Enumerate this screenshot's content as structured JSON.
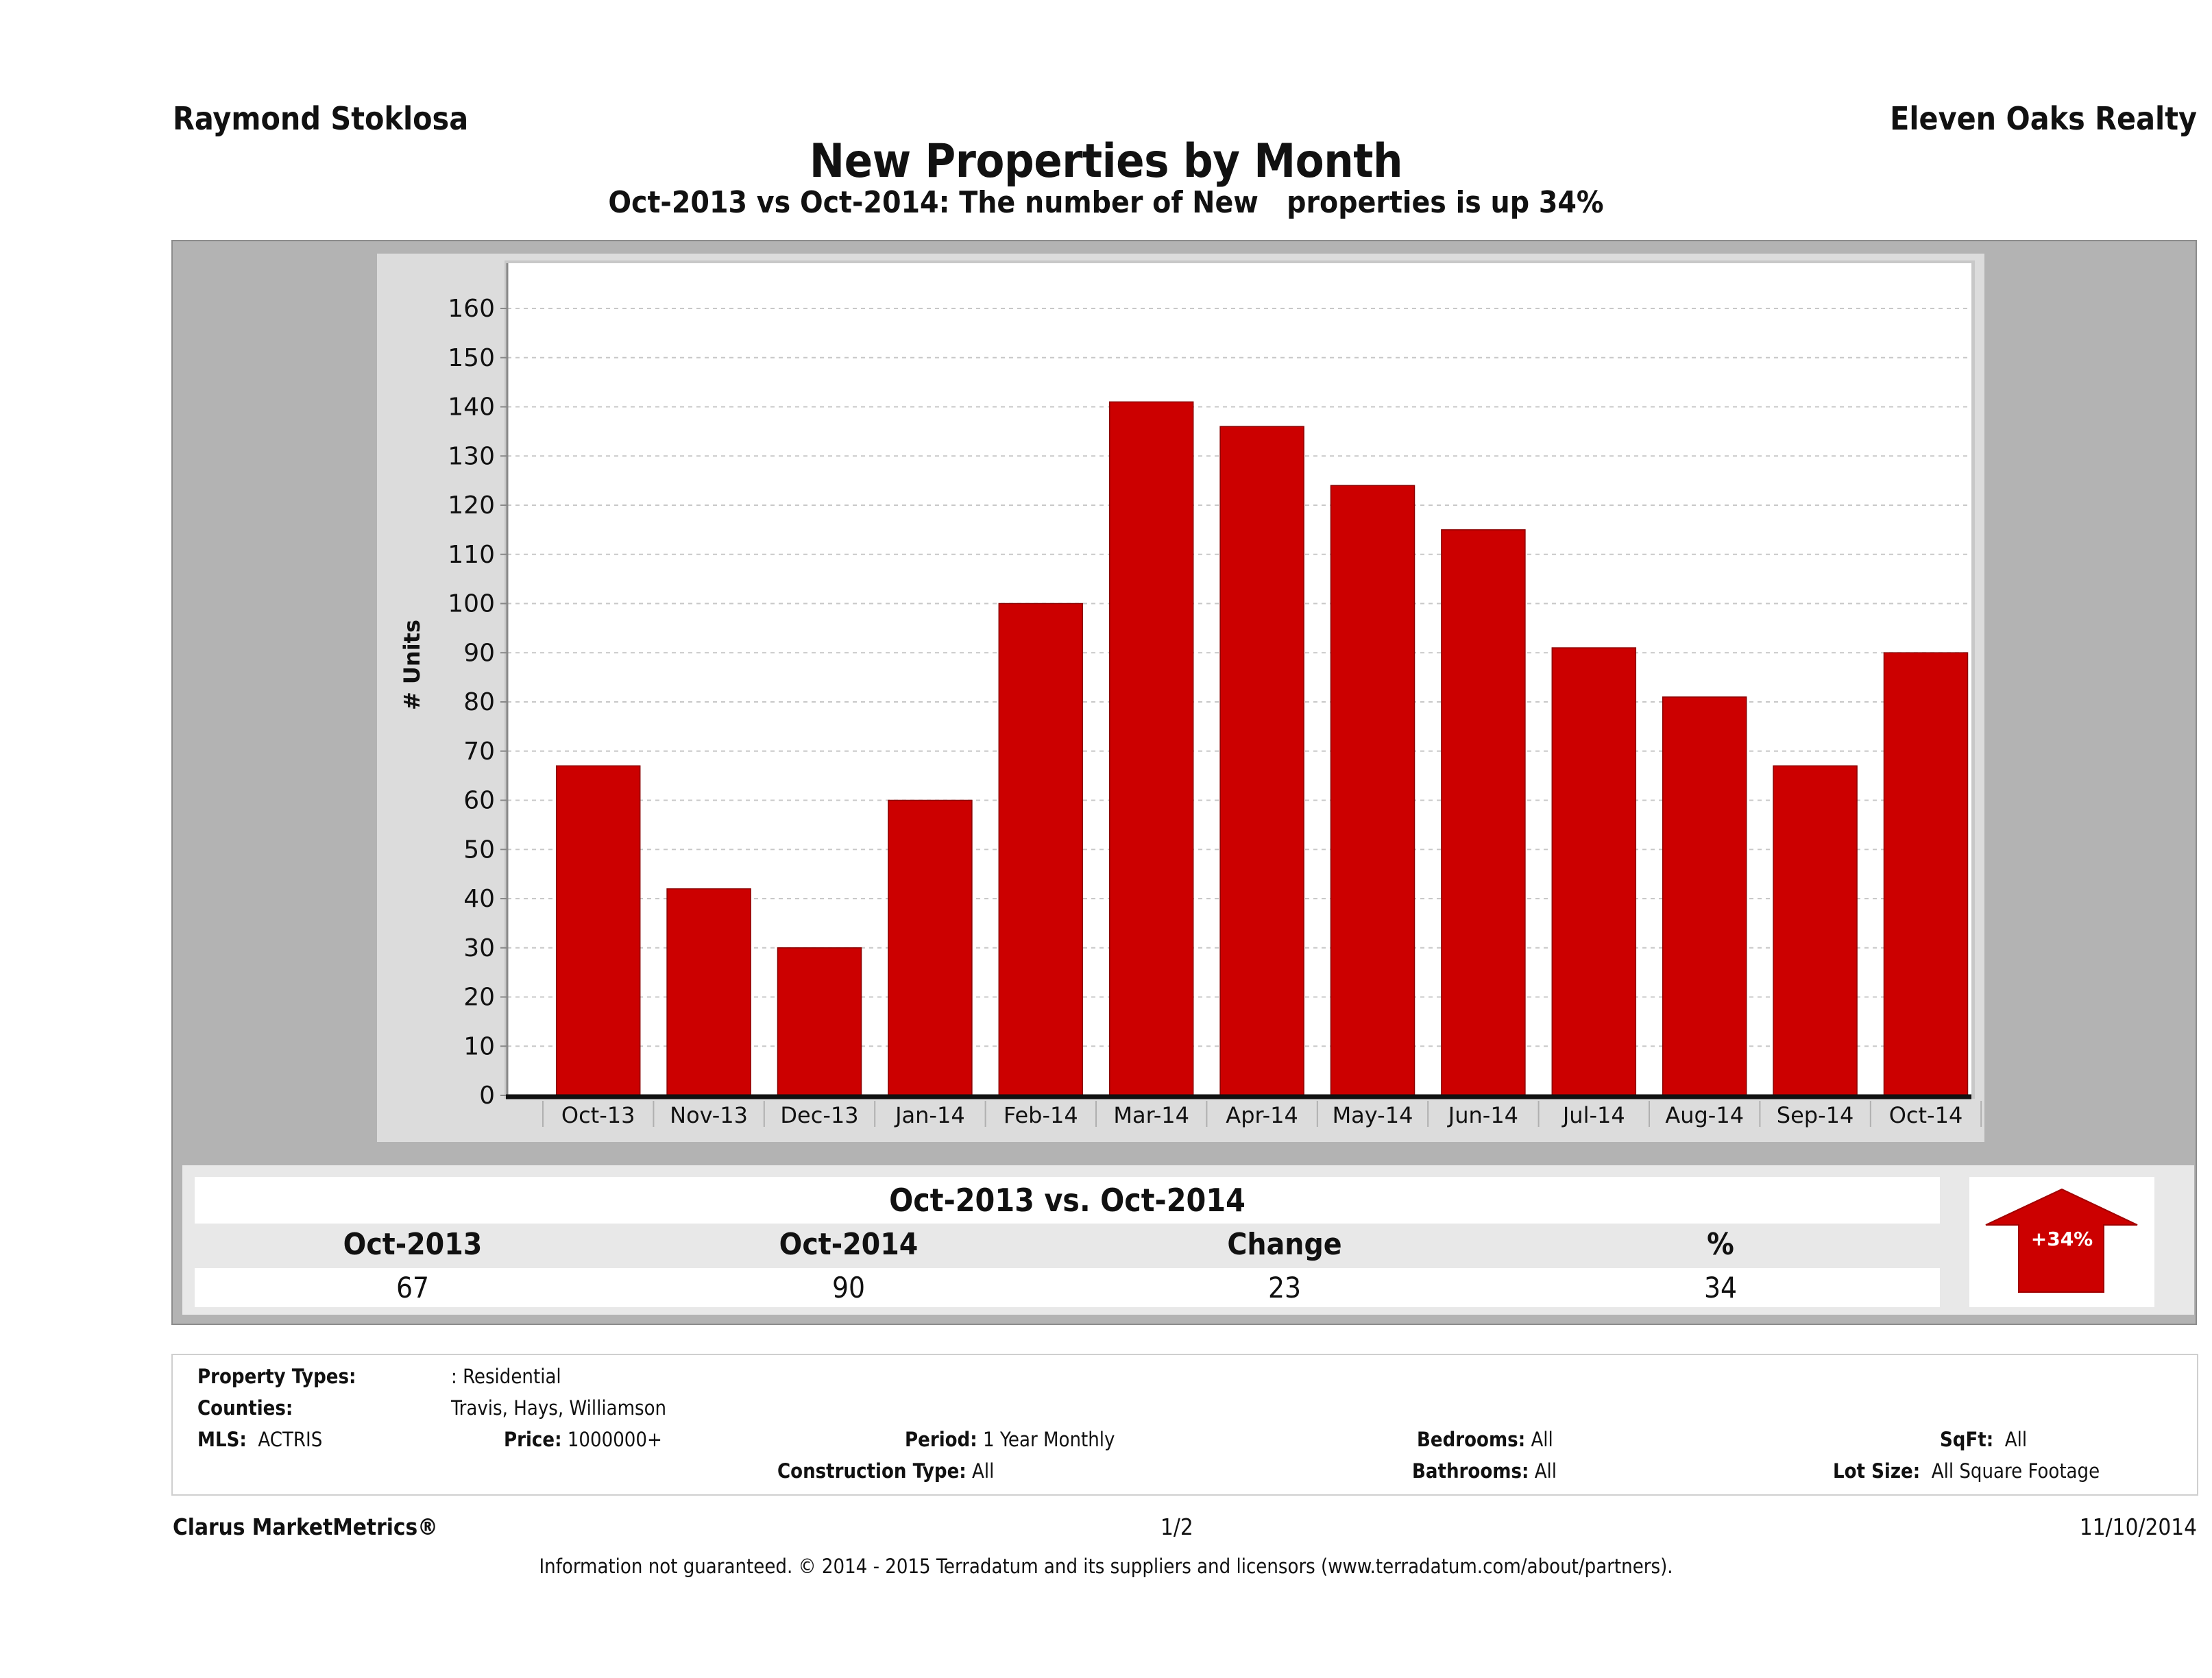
{
  "header": {
    "agent_name": "Raymond Stoklosa",
    "brokerage": "Eleven Oaks Realty",
    "title": "New Properties by Month",
    "subtitle": "Oct-2013 vs Oct-2014: The number of New   properties is up 34%"
  },
  "chart_data": {
    "type": "bar",
    "title": "New Properties by Month",
    "xlabel": "",
    "ylabel": "# Units",
    "categories": [
      "Oct-13",
      "Nov-13",
      "Dec-13",
      "Jan-14",
      "Feb-14",
      "Mar-14",
      "Apr-14",
      "May-14",
      "Jun-14",
      "Jul-14",
      "Aug-14",
      "Sep-14",
      "Oct-14"
    ],
    "values": [
      67,
      42,
      30,
      60,
      100,
      141,
      136,
      124,
      115,
      91,
      81,
      67,
      90
    ],
    "ylim": [
      0,
      160
    ],
    "yticks": [
      0,
      10,
      20,
      30,
      40,
      50,
      60,
      70,
      80,
      90,
      100,
      110,
      120,
      130,
      140,
      150,
      160
    ],
    "grid": true,
    "legend": "none",
    "bar_color": "#cc0000"
  },
  "summary": {
    "title": "Oct-2013 vs. Oct-2014",
    "headers": [
      "Oct-2013",
      "Oct-2014",
      "Change",
      "%"
    ],
    "values": [
      "67",
      "90",
      "23",
      "34"
    ],
    "badge_label": "+34%",
    "badge_direction": "up",
    "badge_color": "#cc0000"
  },
  "filters": {
    "property_types_label": "Property Types:",
    "property_types_value": ": Residential",
    "counties_label": "Counties:",
    "counties_value": "Travis, Hays, Williamson",
    "mls_label": "MLS:",
    "mls_value": "ACTRIS",
    "price_label": "Price:",
    "price_value": "1000000+",
    "period_label": "Period:",
    "period_value": "1 Year Monthly",
    "construction_label": "Construction Type:",
    "construction_value": "All",
    "bedrooms_label": "Bedrooms:",
    "bedrooms_value": "All",
    "bathrooms_label": "Bathrooms:",
    "bathrooms_value": "All",
    "sqft_label": "SqFt:",
    "sqft_value": "All",
    "lot_label": "Lot Size:",
    "lot_value": "All Square Footage"
  },
  "footer": {
    "product": "Clarus MarketMetrics®",
    "page": "1/2",
    "date": "11/10/2014",
    "disclaimer": "Information not guaranteed. © 2014 - 2015 Terradatum and its suppliers and licensors (www.terradatum.com/about/partners)."
  }
}
